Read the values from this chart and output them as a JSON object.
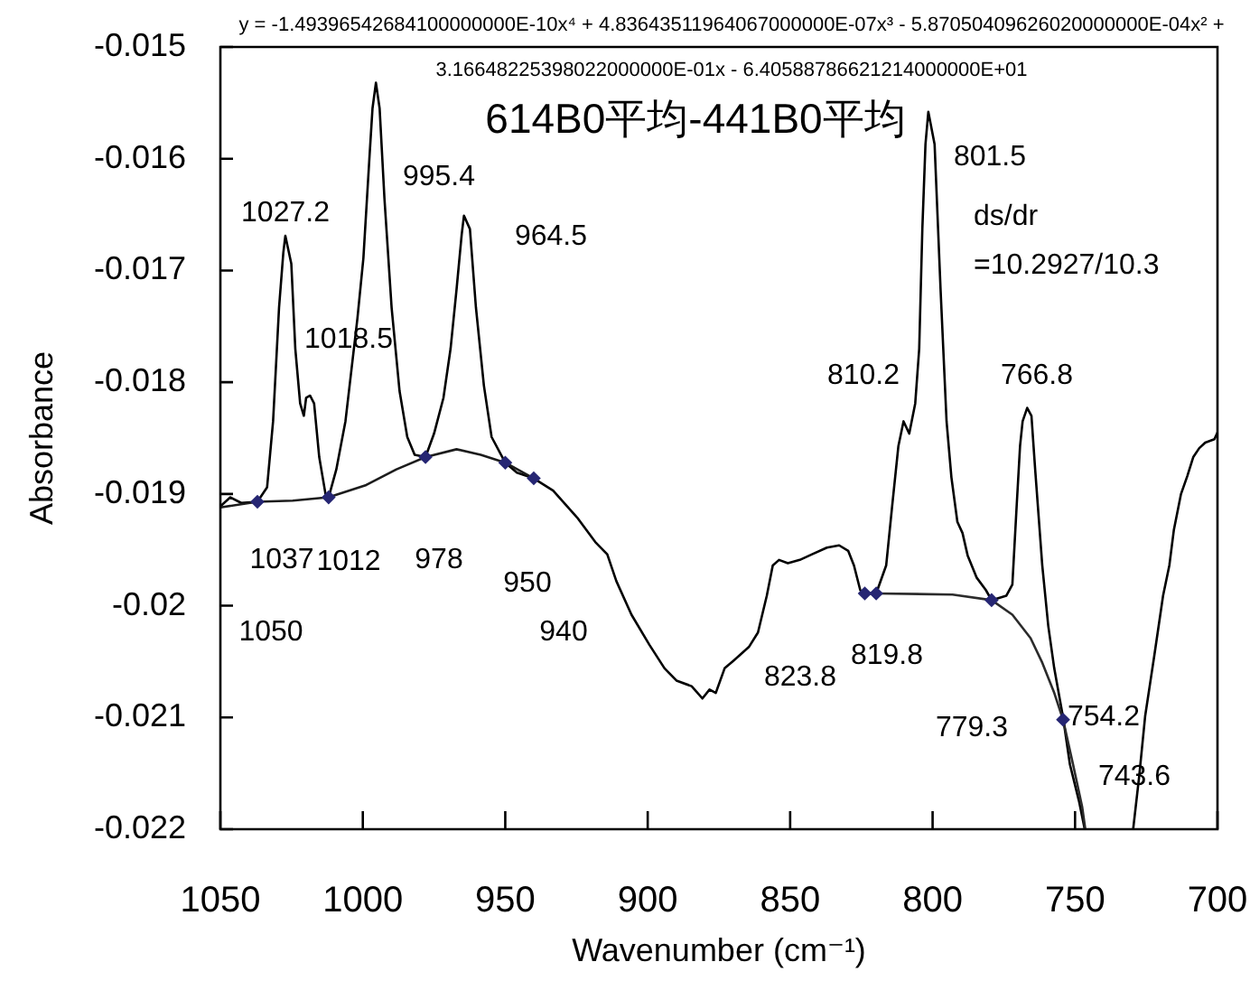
{
  "chart_data": {
    "type": "line",
    "title": "614B0平均-441B0平均",
    "xlabel": "Wavenumber (cm⁻¹)",
    "ylabel": "Absorbance",
    "xlim": [
      1050,
      700
    ],
    "xticks": [
      1050,
      1000,
      950,
      900,
      850,
      800,
      750,
      700
    ],
    "ylim": [
      -0.022,
      -0.015
    ],
    "yticks": [
      -0.022,
      -0.021,
      -0.02,
      -0.019,
      -0.018,
      -0.017,
      -0.016,
      -0.015
    ],
    "marker": "none",
    "series": [
      {
        "color": "#000000",
        "x": [
          1050,
          1046.5,
          1042.7,
          1037,
          1033.6,
          1031.5,
          1029.4,
          1027.9,
          1027.2,
          1025.1,
          1023.7,
          1022.0,
          1020.7,
          1019.9,
          1018.5,
          1017.1,
          1015.3,
          1013.1,
          1012,
          1009.3,
          1006.1,
          1001.9,
          999.8,
          997.7,
          996.6,
          995.4,
          994.1,
          992.4,
          989.9,
          987.1,
          984.4,
          981.8,
          978,
          975.0,
          971.7,
          969.2,
          967.1,
          965.3,
          964.5,
          962.4,
          960.3,
          957.5,
          954.8,
          950,
          945.9,
          940,
          933.2,
          924.8,
          918.4,
          914.2,
          911.0,
          905.7,
          899.4,
          894.1,
          889.9,
          884.6,
          882.5,
          880.8,
          878.3,
          876.1,
          873.0,
          869.8,
          864.5,
          861.3,
          858.2,
          856.1,
          853.9,
          850.8,
          846.6,
          842.3,
          837.1,
          832.8,
          829.6,
          827.6,
          825.4,
          823.8,
          819.8,
          816.3,
          814.2,
          812.0,
          810.2,
          808.2,
          806.1,
          804.7,
          803.6,
          802.5,
          801.5,
          799.3,
          797.2,
          795.1,
          793.4,
          791.3,
          789.5,
          787.7,
          784.5,
          781.3,
          779.3,
          774.1,
          772.0,
          770.5,
          769.3,
          768.4,
          766.8,
          765.3,
          764.0,
          761.5,
          759.4,
          757.3,
          754.2,
          751.8,
          748.6,
          746.6,
          738,
          729.6,
          727.5,
          725.4,
          722.2,
          719.1,
          716.9,
          715.3,
          712.8,
          710.6,
          708.5,
          706.4,
          704.3,
          701.1,
          700
        ],
        "values": [
          -0.01911,
          -0.01903,
          -0.01908,
          -0.01907,
          -0.01894,
          -0.01835,
          -0.01733,
          -0.01684,
          -0.01669,
          -0.01694,
          -0.0177,
          -0.01819,
          -0.0183,
          -0.01814,
          -0.01812,
          -0.01819,
          -0.01867,
          -0.019,
          -0.01903,
          -0.01878,
          -0.01835,
          -0.01743,
          -0.01689,
          -0.016,
          -0.01555,
          -0.01532,
          -0.01555,
          -0.01636,
          -0.01733,
          -0.01808,
          -0.01849,
          -0.01865,
          -0.01867,
          -0.01846,
          -0.01814,
          -0.0177,
          -0.01717,
          -0.01668,
          -0.01651,
          -0.01663,
          -0.01733,
          -0.01803,
          -0.01849,
          -0.01872,
          -0.01881,
          -0.01886,
          -0.01897,
          -0.01921,
          -0.01943,
          -0.01954,
          -0.01978,
          -0.02008,
          -0.02035,
          -0.02056,
          -0.02067,
          -0.02072,
          -0.02078,
          -0.02083,
          -0.02075,
          -0.02078,
          -0.02056,
          -0.02049,
          -0.02037,
          -0.02024,
          -0.01991,
          -0.01964,
          -0.01959,
          -0.01962,
          -0.01959,
          -0.01954,
          -0.01948,
          -0.01946,
          -0.01951,
          -0.01964,
          -0.01986,
          -0.01989,
          -0.01989,
          -0.01964,
          -0.01911,
          -0.01857,
          -0.01835,
          -0.01846,
          -0.01819,
          -0.0177,
          -0.01663,
          -0.01587,
          -0.01558,
          -0.01587,
          -0.01717,
          -0.01835,
          -0.01885,
          -0.01925,
          -0.01935,
          -0.01955,
          -0.01975,
          -0.01986,
          -0.01995,
          -0.01991,
          -0.01981,
          -0.01911,
          -0.01857,
          -0.01835,
          -0.01823,
          -0.0183,
          -0.01878,
          -0.01964,
          -0.02018,
          -0.02056,
          -0.021,
          -0.02142,
          -0.02175,
          -0.022,
          null,
          -0.022,
          -0.02153,
          -0.02099,
          -0.02045,
          -0.01991,
          -0.01964,
          -0.01932,
          -0.019,
          -0.01884,
          -0.01867,
          -0.01859,
          -0.01854,
          -0.01851,
          -0.01845
        ]
      },
      {
        "color": "#1c1c1c",
        "x": [
          1050,
          1037,
          1024.6,
          1012,
          998.8,
          988.2,
          978,
          967.1,
          958.6,
          950,
          940
        ],
        "values": [
          -0.01912,
          -0.01907,
          -0.01906,
          -0.01903,
          -0.01892,
          -0.01878,
          -0.01867,
          -0.0186,
          -0.01865,
          -0.01872,
          -0.01886
        ]
      },
      {
        "color": "#2b2b2b",
        "x": [
          823.8,
          819.8,
          793.0,
          779.3,
          772.0,
          765.6,
          761.5,
          757.3,
          754.2,
          750.7,
          747.5,
          746.4
        ],
        "values": [
          -0.01989,
          -0.01989,
          -0.0199,
          -0.01995,
          -0.02008,
          -0.02029,
          -0.02051,
          -0.02078,
          -0.02102,
          -0.02142,
          -0.0218,
          -0.022
        ]
      },
      {
        "type": "scatter",
        "color": "#262673",
        "marker": "diamond",
        "x": [
          1037,
          1012,
          978,
          950,
          940,
          823.8,
          819.8,
          779.3,
          754.2
        ],
        "values": [
          -0.01907,
          -0.01903,
          -0.01867,
          -0.01872,
          -0.01886,
          -0.01989,
          -0.01989,
          -0.01995,
          -0.02102
        ]
      }
    ],
    "annotations": [
      "y = -1.49396542684100000000E-10x⁴ + 4.83643511964067000000E-07x³ - 5.87050409626020000000E-04x² + 3.16648225398022000000E-01x - 6.40588786621214000000E+01",
      "1027.2",
      "1018.5",
      "995.4",
      "964.5",
      "1037",
      "1012",
      "978",
      "950",
      "940",
      "1050",
      "810.2",
      "801.5",
      "766.8",
      "823.8",
      "819.8",
      "779.3",
      "754.2",
      "743.6",
      "ds/dr",
      "=10.2927/10.3"
    ]
  }
}
